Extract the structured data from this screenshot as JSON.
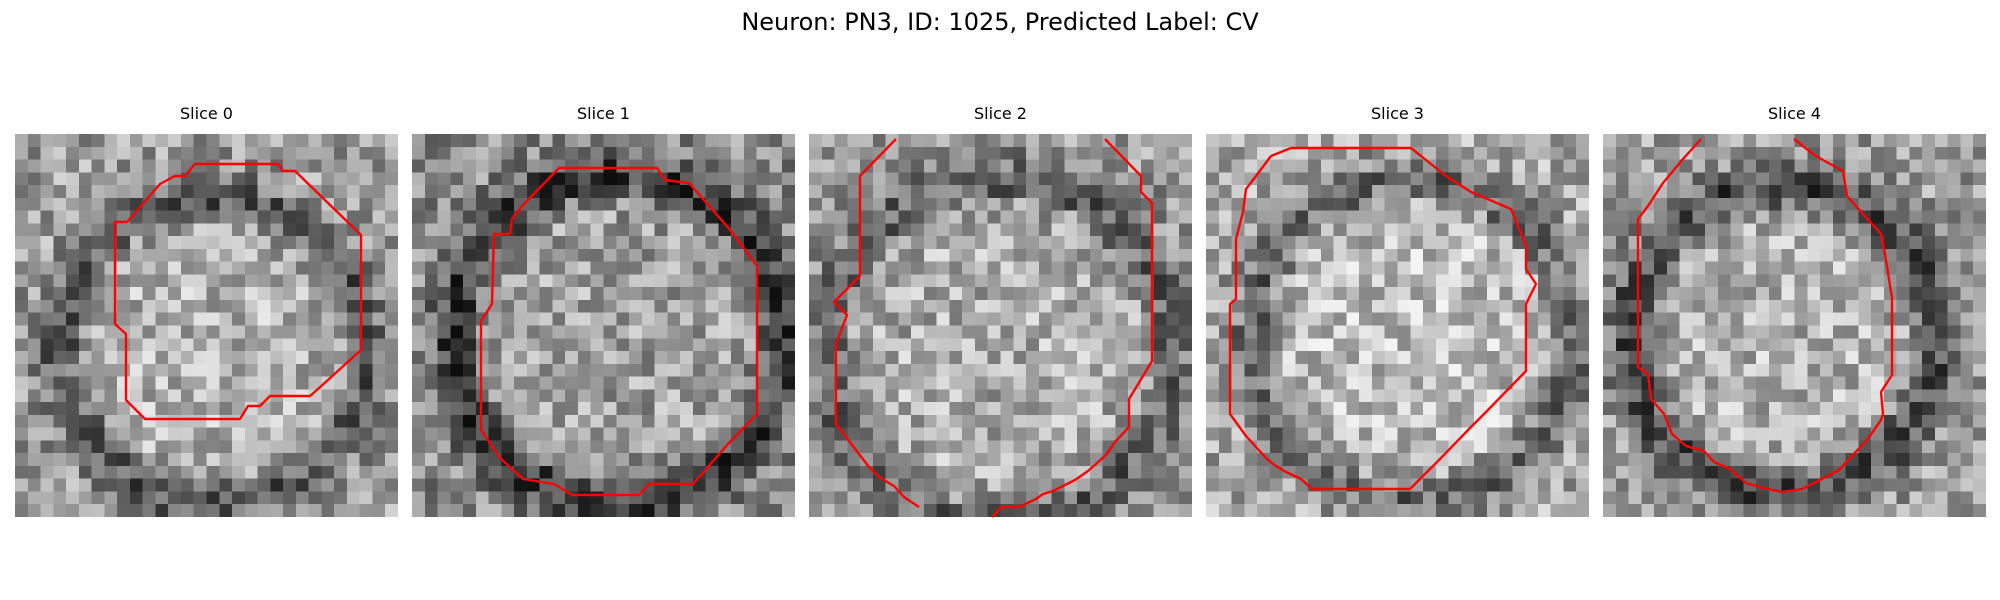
{
  "figure": {
    "title": "Neuron: PN3, ID: 1025, Predicted Label: CV",
    "contour_color": "#ff0000"
  },
  "slices": [
    {
      "label": "Slice 0"
    },
    {
      "label": "Slice 1"
    },
    {
      "label": "Slice 2"
    },
    {
      "label": "Slice 3"
    },
    {
      "label": "Slice 4"
    }
  ]
}
